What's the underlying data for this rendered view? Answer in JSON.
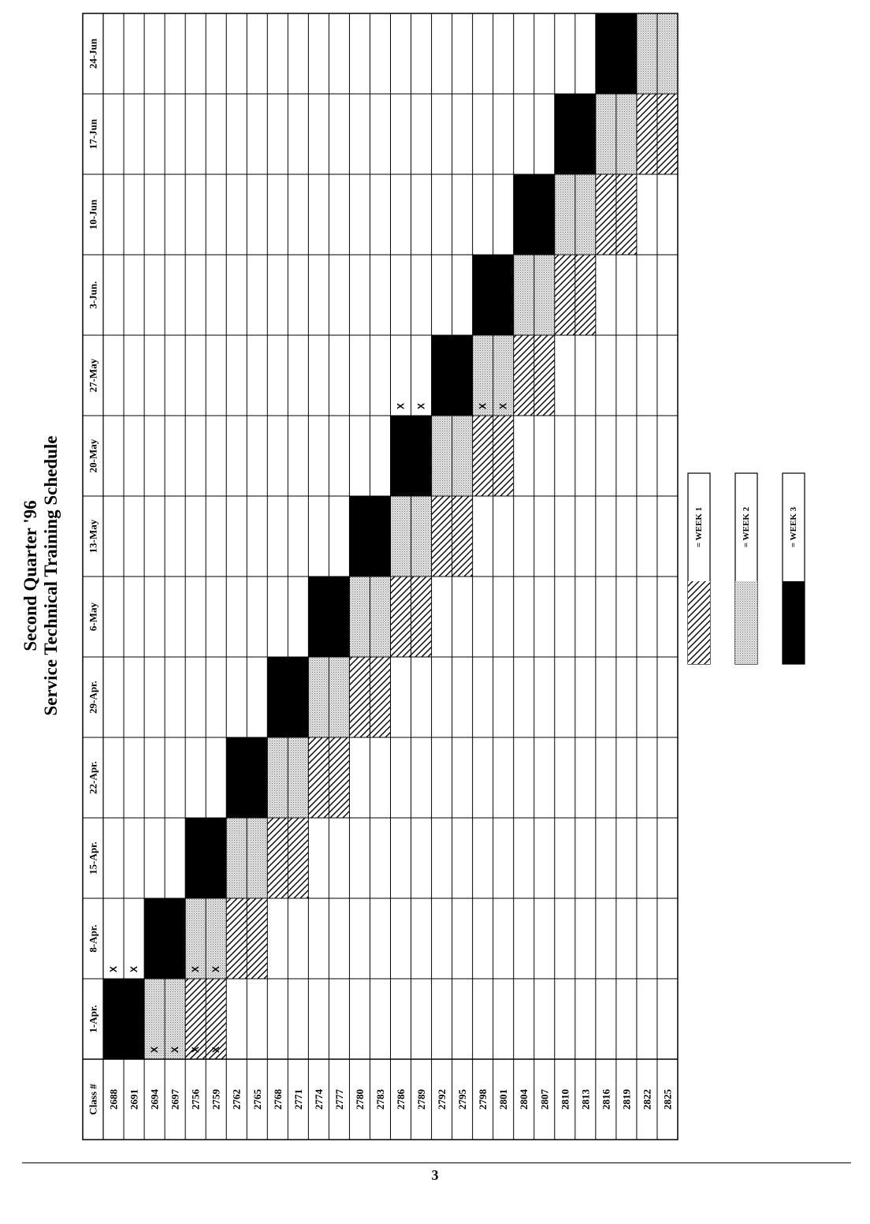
{
  "title": {
    "line1": "Second Quarter '96",
    "line2": "Service Technical Training Schedule"
  },
  "table": {
    "class_header": "Class #",
    "weeks": [
      "1-Apr.",
      "8-Apr.",
      "15-Apr.",
      "22-Apr.",
      "29-Apr.",
      "6-May",
      "13-May",
      "20-May",
      "27-May",
      "3-Jun.",
      "10-Jun",
      "17-Jun",
      "24-Jun"
    ],
    "classes": [
      "2688",
      "2691",
      "2694",
      "2697",
      "2756",
      "2759",
      "2762",
      "2765",
      "2768",
      "2771",
      "2774",
      "2777",
      "2780",
      "2783",
      "2786",
      "2789",
      "2792",
      "2795",
      "2798",
      "2801",
      "2804",
      "2807",
      "2810",
      "2813",
      "2816",
      "2819",
      "2822",
      "2825"
    ],
    "x_marks": [
      {
        "class_index": 0,
        "week_index": 0,
        "text": "X"
      },
      {
        "class_index": 0,
        "week_index": 1,
        "text": "X"
      },
      {
        "class_index": 1,
        "week_index": 0,
        "text": "X"
      },
      {
        "class_index": 1,
        "week_index": 1,
        "text": "X"
      },
      {
        "class_index": 2,
        "week_index": 0,
        "text": "X"
      },
      {
        "class_index": 2,
        "week_index": 1,
        "text": "X"
      },
      {
        "class_index": 3,
        "week_index": 0,
        "text": "X"
      },
      {
        "class_index": 3,
        "week_index": 1,
        "text": "X"
      },
      {
        "class_index": 4,
        "week_index": 0,
        "text": "X"
      },
      {
        "class_index": 4,
        "week_index": 1,
        "text": "X"
      },
      {
        "class_index": 5,
        "week_index": 0,
        "text": "X"
      },
      {
        "class_index": 5,
        "week_index": 1,
        "text": "X"
      },
      {
        "class_index": 14,
        "week_index": 8,
        "text": "X"
      },
      {
        "class_index": 15,
        "week_index": 8,
        "text": "X"
      },
      {
        "class_index": 16,
        "week_index": 8,
        "text": "X"
      },
      {
        "class_index": 17,
        "week_index": 8,
        "text": "X"
      },
      {
        "class_index": 18,
        "week_index": 8,
        "text": "X"
      },
      {
        "class_index": 19,
        "week_index": 8,
        "text": "X"
      }
    ]
  },
  "legend": [
    {
      "pattern": "hatch",
      "label": "= WEEK 1"
    },
    {
      "pattern": "dots",
      "label": "= WEEK 2"
    },
    {
      "pattern": "solid",
      "label": "= WEEK 3"
    }
  ],
  "colors": {
    "week3": "#000000",
    "week2": "#c8c8c8",
    "ink": "#000000"
  },
  "page_number": "3"
}
